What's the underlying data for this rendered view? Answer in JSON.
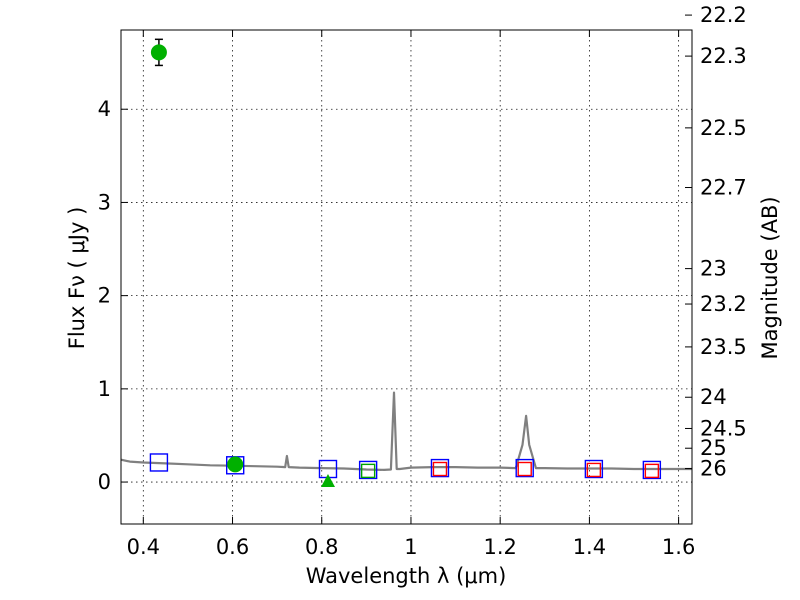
{
  "chart_data": {
    "type": "scatter",
    "xlabel": "Wavelength  λ (μm)",
    "ylabel": "Flux  Fν  ( μJy )",
    "ylabel2": "Magnitude (AB)",
    "xlim": [
      0.35,
      1.63
    ],
    "ylim": [
      -0.45,
      4.85
    ],
    "grid": true,
    "x_ticks": [
      {
        "value": 0.4,
        "label": "0.4"
      },
      {
        "value": 0.6,
        "label": "0.6"
      },
      {
        "value": 0.8,
        "label": "0.8"
      },
      {
        "value": 1.0,
        "label": "1"
      },
      {
        "value": 1.2,
        "label": "1.2"
      },
      {
        "value": 1.4,
        "label": "1.4"
      },
      {
        "value": 1.6,
        "label": "1.6"
      }
    ],
    "y_ticks": [
      {
        "value": 0,
        "label": "0"
      },
      {
        "value": 1,
        "label": "1"
      },
      {
        "value": 2,
        "label": "2"
      },
      {
        "value": 3,
        "label": "3"
      },
      {
        "value": 4,
        "label": "4"
      }
    ],
    "magnitude_ticks": [
      {
        "flux": 5.01,
        "label": "22.2"
      },
      {
        "flux": 4.57,
        "label": "22.3"
      },
      {
        "flux": 3.8,
        "label": "22.5"
      },
      {
        "flux": 3.16,
        "label": "22.7"
      },
      {
        "flux": 2.29,
        "label": "23"
      },
      {
        "flux": 1.91,
        "label": "23.2"
      },
      {
        "flux": 1.45,
        "label": "23.5"
      },
      {
        "flux": 0.91,
        "label": "24"
      },
      {
        "flux": 0.575,
        "label": "24.5"
      },
      {
        "flux": 0.363,
        "label": "25"
      },
      {
        "flux": 0.145,
        "label": "26"
      }
    ],
    "series": [
      {
        "kind": "spectrum",
        "color": "#808080",
        "points": [
          [
            0.35,
            0.24
          ],
          [
            0.37,
            0.22
          ],
          [
            0.4,
            0.21
          ],
          [
            0.45,
            0.2
          ],
          [
            0.5,
            0.19
          ],
          [
            0.55,
            0.18
          ],
          [
            0.6,
            0.175
          ],
          [
            0.65,
            0.17
          ],
          [
            0.7,
            0.165
          ],
          [
            0.718,
            0.16
          ],
          [
            0.722,
            0.28
          ],
          [
            0.726,
            0.16
          ],
          [
            0.75,
            0.155
          ],
          [
            0.8,
            0.15
          ],
          [
            0.85,
            0.145
          ],
          [
            0.9,
            0.135
          ],
          [
            0.94,
            0.13
          ],
          [
            0.955,
            0.135
          ],
          [
            0.962,
            0.96
          ],
          [
            0.968,
            0.14
          ],
          [
            0.975,
            0.14
          ],
          [
            1.0,
            0.155
          ],
          [
            1.05,
            0.16
          ],
          [
            1.1,
            0.16
          ],
          [
            1.15,
            0.155
          ],
          [
            1.2,
            0.155
          ],
          [
            1.235,
            0.15
          ],
          [
            1.25,
            0.4
          ],
          [
            1.258,
            0.71
          ],
          [
            1.265,
            0.4
          ],
          [
            1.28,
            0.15
          ],
          [
            1.3,
            0.15
          ],
          [
            1.35,
            0.145
          ],
          [
            1.4,
            0.145
          ],
          [
            1.45,
            0.145
          ],
          [
            1.5,
            0.14
          ],
          [
            1.55,
            0.14
          ],
          [
            1.6,
            0.14
          ],
          [
            1.63,
            0.14
          ]
        ]
      },
      {
        "kind": "model_photometry",
        "marker": "square",
        "color": "#0000ff",
        "points": [
          [
            0.435,
            0.21
          ],
          [
            0.606,
            0.18
          ],
          [
            0.814,
            0.14
          ],
          [
            0.904,
            0.13
          ],
          [
            1.065,
            0.15
          ],
          [
            1.255,
            0.15
          ],
          [
            1.41,
            0.14
          ],
          [
            1.54,
            0.13
          ]
        ]
      },
      {
        "kind": "red_squares",
        "marker": "square",
        "color": "#ff0000",
        "points": [
          [
            1.065,
            0.14
          ],
          [
            1.255,
            0.14
          ],
          [
            1.41,
            0.13
          ],
          [
            1.54,
            0.12
          ]
        ]
      },
      {
        "kind": "green_squares",
        "marker": "square",
        "color": "#00a000",
        "points": [
          [
            0.904,
            0.12
          ]
        ]
      },
      {
        "kind": "observed",
        "marker": "circle",
        "color": "#00b000",
        "points": [
          {
            "x": 0.435,
            "y": 4.61,
            "err": 0.14
          },
          {
            "x": 0.606,
            "y": 0.19,
            "err": 0.03
          }
        ]
      },
      {
        "kind": "upper_limit",
        "marker": "triangle",
        "color": "#00b000",
        "points": [
          [
            0.814,
            0.0
          ]
        ]
      }
    ]
  }
}
